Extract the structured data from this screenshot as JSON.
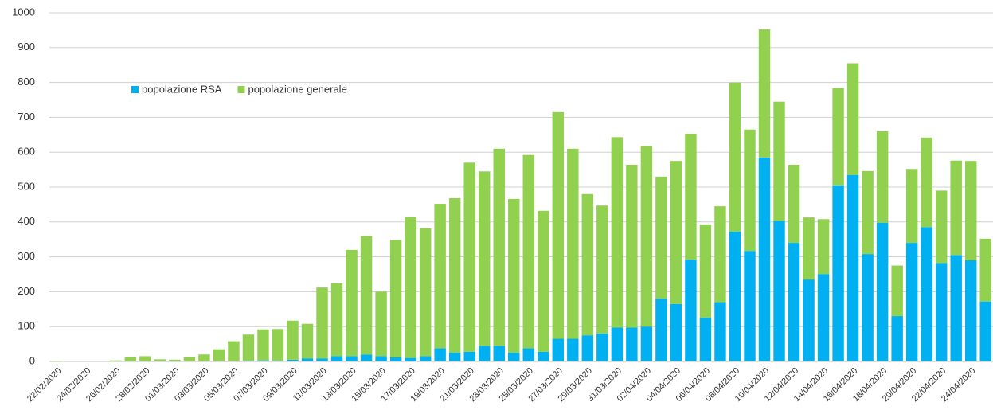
{
  "chart_data": {
    "type": "stacked_bar",
    "categories": [
      "22/02/2020",
      null,
      "24/02/2020",
      null,
      "26/02/2020",
      null,
      "28/02/2020",
      null,
      "01/03/2020",
      null,
      "03/03/2020",
      null,
      "05/03/2020",
      null,
      "07/03/2020",
      null,
      "09/03/2020",
      null,
      "11/03/2020",
      null,
      "13/03/2020",
      null,
      "15/03/2020",
      null,
      "17/03/2020",
      null,
      "19/03/2020",
      null,
      "21/03/2020",
      null,
      "23/03/2020",
      null,
      "25/03/2020",
      null,
      "27/03/2020",
      null,
      "29/03/2020",
      null,
      "31/03/2020",
      null,
      "02/04/2020",
      null,
      "04/04/2020",
      null,
      "06/04/2020",
      null,
      "08/04/2020",
      null,
      "10/04/2020",
      null,
      "12/04/2020",
      null,
      "14/04/2020",
      null,
      "16/04/2020",
      null,
      "18/04/2020",
      null,
      "20/04/2020",
      null,
      "22/04/2020",
      null,
      "24/04/2020",
      null
    ],
    "series": [
      {
        "name": "popolazione RSA",
        "color": "#00b0f0",
        "values": [
          0,
          0,
          0,
          0,
          0,
          0,
          0,
          0,
          0,
          0,
          0,
          0,
          0,
          2,
          3,
          2,
          5,
          8,
          8,
          15,
          15,
          20,
          15,
          12,
          10,
          15,
          38,
          25,
          28,
          45,
          45,
          25,
          38,
          28,
          65,
          65,
          75,
          80,
          97,
          97,
          100,
          180,
          165,
          292,
          125,
          170,
          372,
          317,
          585,
          403,
          340,
          235,
          250,
          505,
          535,
          308,
          398,
          130,
          340,
          385,
          282,
          305,
          290,
          172
        ]
      },
      {
        "name": "popolazione generale",
        "color": "#92d050",
        "values": [
          2,
          1,
          0,
          0,
          3,
          13,
          15,
          6,
          5,
          13,
          20,
          35,
          58,
          75,
          89,
          91,
          112,
          100,
          204,
          209,
          305,
          340,
          185,
          336,
          405,
          367,
          414,
          443,
          542,
          500,
          565,
          441,
          554,
          404,
          650,
          545,
          405,
          367,
          546,
          467,
          517,
          350,
          410,
          361,
          268,
          275,
          428,
          348,
          367,
          342,
          224,
          178,
          158,
          279,
          320,
          238,
          262,
          145,
          212,
          257,
          208,
          271,
          285,
          180
        ]
      }
    ],
    "ylim": [
      0,
      1000
    ],
    "yticks": [
      0,
      100,
      200,
      300,
      400,
      500,
      600,
      700,
      800,
      900,
      1000
    ],
    "grid": true
  }
}
